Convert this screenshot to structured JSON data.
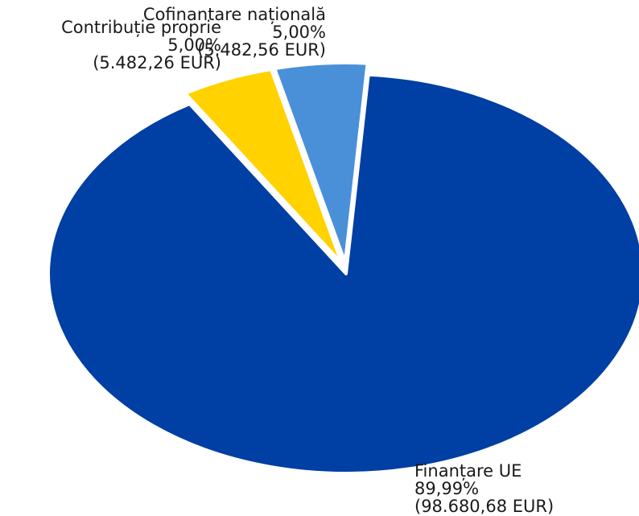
{
  "chart_data": {
    "type": "pie",
    "title": "",
    "legend": "none",
    "slices": [
      {
        "label": "Finanțare UE",
        "percent_text": "89,99%",
        "amount_text": "(98.680,68 EUR)",
        "value": 98680.68,
        "percent": 89.99,
        "color": "#003fa3",
        "exploded": false
      },
      {
        "label": "Contribuție proprie",
        "percent_text": "5,00%",
        "amount_text": "(5.482,26 EUR)",
        "value": 5482.26,
        "percent": 5.0,
        "color": "#ffd200",
        "exploded": true
      },
      {
        "label": "Cofinantare națională",
        "percent_text": "5,00%",
        "amount_text": "(5.482,56 EUR)",
        "value": 5482.56,
        "percent": 5.0,
        "color": "#4a90d9",
        "exploded": true
      }
    ]
  }
}
